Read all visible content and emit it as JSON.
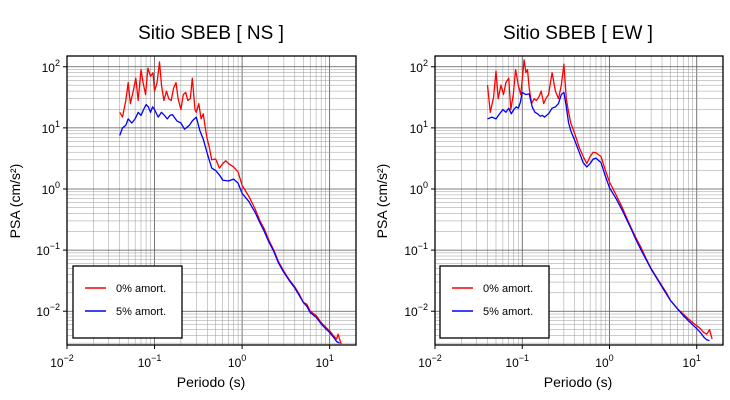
{
  "chart_data": [
    {
      "type": "line",
      "title": "Sitio SBEB [ NS ]",
      "xlabel": "Periodo (s)",
      "ylabel": "PSA (cm/s²)",
      "xscale": "log",
      "yscale": "log",
      "xlim": [
        0.01,
        20
      ],
      "ylim": [
        0.0028,
        150
      ],
      "grid": true,
      "legend": "bottom-left",
      "x_ticks": [
        {
          "v": 0.01,
          "base": "10",
          "exp": "−2"
        },
        {
          "v": 0.1,
          "base": "10",
          "exp": "−1"
        },
        {
          "v": 1,
          "base": "10",
          "exp": "0"
        },
        {
          "v": 10,
          "base": "10",
          "exp": "1"
        }
      ],
      "y_ticks": [
        {
          "v": 0.01,
          "base": "10",
          "exp": "−2"
        },
        {
          "v": 0.1,
          "base": "10",
          "exp": "−1"
        },
        {
          "v": 1,
          "base": "10",
          "exp": "0"
        },
        {
          "v": 10,
          "base": "10",
          "exp": "1"
        },
        {
          "v": 100,
          "base": "10",
          "exp": "2"
        }
      ],
      "series": [
        {
          "name": "0% amort.",
          "color": "#ff0000",
          "points": [
            [
              0.04,
              18
            ],
            [
              0.043,
              15
            ],
            [
              0.047,
              28
            ],
            [
              0.05,
              55
            ],
            [
              0.053,
              25
            ],
            [
              0.057,
              40
            ],
            [
              0.061,
              65
            ],
            [
              0.065,
              28
            ],
            [
              0.07,
              90
            ],
            [
              0.074,
              55
            ],
            [
              0.079,
              35
            ],
            [
              0.084,
              95
            ],
            [
              0.09,
              70
            ],
            [
              0.096,
              80
            ],
            [
              0.1,
              40
            ],
            [
              0.107,
              55
            ],
            [
              0.114,
              120
            ],
            [
              0.12,
              50
            ],
            [
              0.128,
              28
            ],
            [
              0.137,
              40
            ],
            [
              0.145,
              30
            ],
            [
              0.155,
              28
            ],
            [
              0.165,
              45
            ],
            [
              0.176,
              55
            ],
            [
              0.186,
              30
            ],
            [
              0.2,
              20
            ],
            [
              0.213,
              35
            ],
            [
              0.227,
              38
            ],
            [
              0.24,
              28
            ],
            [
              0.256,
              30
            ],
            [
              0.27,
              65
            ],
            [
              0.29,
              20
            ],
            [
              0.3,
              18
            ],
            [
              0.32,
              25
            ],
            [
              0.34,
              14
            ],
            [
              0.36,
              17
            ],
            [
              0.38,
              10
            ],
            [
              0.4,
              6.5
            ],
            [
              0.42,
              5
            ],
            [
              0.45,
              3
            ],
            [
              0.5,
              3.1
            ],
            [
              0.55,
              2.2
            ],
            [
              0.6,
              2.6
            ],
            [
              0.65,
              2.9
            ],
            [
              0.7,
              2.6
            ],
            [
              0.8,
              2.3
            ],
            [
              0.9,
              1.9
            ],
            [
              1.0,
              1.15
            ],
            [
              1.2,
              0.75
            ],
            [
              1.4,
              0.48
            ],
            [
              1.6,
              0.3
            ],
            [
              1.8,
              0.22
            ],
            [
              2.0,
              0.15
            ],
            [
              2.3,
              0.1
            ],
            [
              2.6,
              0.065
            ],
            [
              3.0,
              0.045
            ],
            [
              3.5,
              0.032
            ],
            [
              4.0,
              0.025
            ],
            [
              4.5,
              0.019
            ],
            [
              5.0,
              0.014
            ],
            [
              5.5,
              0.013
            ],
            [
              6.0,
              0.01
            ],
            [
              7.0,
              0.0085
            ],
            [
              8.0,
              0.0065
            ],
            [
              9.0,
              0.0055
            ],
            [
              10.0,
              0.0048
            ],
            [
              11.0,
              0.004
            ],
            [
              12.0,
              0.0035
            ],
            [
              12.5,
              0.0042
            ],
            [
              13.5,
              0.0029
            ]
          ]
        },
        {
          "name": "5% amort.",
          "color": "#0000ff",
          "points": [
            [
              0.04,
              7.5
            ],
            [
              0.043,
              10
            ],
            [
              0.047,
              11
            ],
            [
              0.05,
              14
            ],
            [
              0.055,
              12
            ],
            [
              0.06,
              14
            ],
            [
              0.065,
              18
            ],
            [
              0.07,
              16
            ],
            [
              0.075,
              20
            ],
            [
              0.08,
              24
            ],
            [
              0.085,
              22
            ],
            [
              0.09,
              18
            ],
            [
              0.095,
              22
            ],
            [
              0.1,
              20
            ],
            [
              0.11,
              15
            ],
            [
              0.12,
              18
            ],
            [
              0.13,
              16
            ],
            [
              0.14,
              14
            ],
            [
              0.15,
              16
            ],
            [
              0.16,
              16.5
            ],
            [
              0.18,
              13
            ],
            [
              0.2,
              12
            ],
            [
              0.22,
              9.5
            ],
            [
              0.25,
              11
            ],
            [
              0.27,
              13
            ],
            [
              0.3,
              15
            ],
            [
              0.33,
              9
            ],
            [
              0.36,
              6.5
            ],
            [
              0.4,
              3.8
            ],
            [
              0.45,
              2.2
            ],
            [
              0.5,
              2.0
            ],
            [
              0.55,
              1.7
            ],
            [
              0.6,
              1.4
            ],
            [
              0.7,
              1.35
            ],
            [
              0.8,
              1.45
            ],
            [
              0.9,
              1.25
            ],
            [
              1.0,
              0.85
            ],
            [
              1.2,
              0.62
            ],
            [
              1.4,
              0.42
            ],
            [
              1.6,
              0.28
            ],
            [
              1.8,
              0.2
            ],
            [
              2.0,
              0.14
            ],
            [
              2.3,
              0.095
            ],
            [
              2.6,
              0.062
            ],
            [
              3.0,
              0.043
            ],
            [
              3.5,
              0.031
            ],
            [
              4.0,
              0.024
            ],
            [
              4.5,
              0.018
            ],
            [
              5.0,
              0.014
            ],
            [
              5.5,
              0.012
            ],
            [
              6.0,
              0.0095
            ],
            [
              7.0,
              0.008
            ],
            [
              8.0,
              0.0062
            ],
            [
              9.0,
              0.0052
            ],
            [
              10.0,
              0.0045
            ],
            [
              11.0,
              0.0038
            ],
            [
              12.0,
              0.0032
            ],
            [
              13.0,
              0.003
            ]
          ]
        }
      ]
    },
    {
      "type": "line",
      "title": "Sitio SBEB [ EW ]",
      "xlabel": "Periodo (s)",
      "ylabel": "PSA (cm/s²)",
      "xscale": "log",
      "yscale": "log",
      "xlim": [
        0.01,
        20
      ],
      "ylim": [
        0.0028,
        150
      ],
      "grid": true,
      "legend": "bottom-left",
      "x_ticks": [
        {
          "v": 0.01,
          "base": "10",
          "exp": "−2"
        },
        {
          "v": 0.1,
          "base": "10",
          "exp": "−1"
        },
        {
          "v": 1,
          "base": "10",
          "exp": "0"
        },
        {
          "v": 10,
          "base": "10",
          "exp": "1"
        }
      ],
      "y_ticks": [
        {
          "v": 0.01,
          "base": "10",
          "exp": "−2"
        },
        {
          "v": 0.1,
          "base": "10",
          "exp": "−1"
        },
        {
          "v": 1,
          "base": "10",
          "exp": "0"
        },
        {
          "v": 10,
          "base": "10",
          "exp": "1"
        },
        {
          "v": 100,
          "base": "10",
          "exp": "2"
        }
      ],
      "series": [
        {
          "name": "0% amort.",
          "color": "#ff0000",
          "points": [
            [
              0.04,
              50
            ],
            [
              0.043,
              18
            ],
            [
              0.047,
              32
            ],
            [
              0.05,
              85
            ],
            [
              0.053,
              30
            ],
            [
              0.057,
              50
            ],
            [
              0.061,
              35
            ],
            [
              0.065,
              55
            ],
            [
              0.07,
              65
            ],
            [
              0.074,
              20
            ],
            [
              0.079,
              35
            ],
            [
              0.084,
              90
            ],
            [
              0.09,
              50
            ],
            [
              0.096,
              35
            ],
            [
              0.1,
              60
            ],
            [
              0.105,
              130
            ],
            [
              0.11,
              80
            ],
            [
              0.115,
              90
            ],
            [
              0.12,
              45
            ],
            [
              0.128,
              25
            ],
            [
              0.137,
              30
            ],
            [
              0.145,
              28
            ],
            [
              0.155,
              32
            ],
            [
              0.165,
              40
            ],
            [
              0.176,
              25
            ],
            [
              0.186,
              30
            ],
            [
              0.2,
              35
            ],
            [
              0.22,
              80
            ],
            [
              0.24,
              40
            ],
            [
              0.26,
              30
            ],
            [
              0.28,
              50
            ],
            [
              0.3,
              110
            ],
            [
              0.32,
              30
            ],
            [
              0.34,
              18
            ],
            [
              0.36,
              12
            ],
            [
              0.4,
              8
            ],
            [
              0.45,
              4.8
            ],
            [
              0.5,
              3.4
            ],
            [
              0.55,
              2.6
            ],
            [
              0.6,
              3.4
            ],
            [
              0.65,
              4
            ],
            [
              0.7,
              3.9
            ],
            [
              0.8,
              3.4
            ],
            [
              0.9,
              2
            ],
            [
              1.0,
              1.3
            ],
            [
              1.2,
              0.78
            ],
            [
              1.4,
              0.5
            ],
            [
              1.6,
              0.32
            ],
            [
              1.8,
              0.22
            ],
            [
              2.0,
              0.16
            ],
            [
              2.3,
              0.11
            ],
            [
              2.6,
              0.075
            ],
            [
              3.0,
              0.05
            ],
            [
              3.5,
              0.035
            ],
            [
              4.0,
              0.026
            ],
            [
              4.5,
              0.02
            ],
            [
              5.0,
              0.015
            ],
            [
              6.0,
              0.011
            ],
            [
              7.0,
              0.009
            ],
            [
              8.0,
              0.0075
            ],
            [
              9.0,
              0.0065
            ],
            [
              10.0,
              0.0058
            ],
            [
              11.0,
              0.0052
            ],
            [
              12.0,
              0.0045
            ],
            [
              13.0,
              0.0042
            ],
            [
              14.0,
              0.005
            ],
            [
              15.0,
              0.0035
            ]
          ]
        },
        {
          "name": "5% amort.",
          "color": "#0000ff",
          "points": [
            [
              0.04,
              14
            ],
            [
              0.045,
              15
            ],
            [
              0.05,
              14
            ],
            [
              0.055,
              17
            ],
            [
              0.06,
              20
            ],
            [
              0.065,
              18
            ],
            [
              0.07,
              21
            ],
            [
              0.075,
              17
            ],
            [
              0.08,
              20
            ],
            [
              0.085,
              22
            ],
            [
              0.09,
              21
            ],
            [
              0.095,
              26
            ],
            [
              0.1,
              38
            ],
            [
              0.11,
              35
            ],
            [
              0.12,
              36
            ],
            [
              0.13,
              22
            ],
            [
              0.14,
              18
            ],
            [
              0.15,
              17
            ],
            [
              0.16,
              15.5
            ],
            [
              0.17,
              16
            ],
            [
              0.18,
              15
            ],
            [
              0.2,
              17
            ],
            [
              0.22,
              21
            ],
            [
              0.24,
              22
            ],
            [
              0.26,
              25
            ],
            [
              0.28,
              35
            ],
            [
              0.3,
              38
            ],
            [
              0.32,
              22
            ],
            [
              0.34,
              12
            ],
            [
              0.36,
              9
            ],
            [
              0.4,
              6.2
            ],
            [
              0.45,
              4
            ],
            [
              0.5,
              2.7
            ],
            [
              0.55,
              2.3
            ],
            [
              0.6,
              2.6
            ],
            [
              0.65,
              3.1
            ],
            [
              0.7,
              3.2
            ],
            [
              0.8,
              2.7
            ],
            [
              0.9,
              1.6
            ],
            [
              1.0,
              1.05
            ],
            [
              1.2,
              0.68
            ],
            [
              1.4,
              0.45
            ],
            [
              1.6,
              0.3
            ],
            [
              1.8,
              0.21
            ],
            [
              2.0,
              0.15
            ],
            [
              2.3,
              0.1
            ],
            [
              2.6,
              0.072
            ],
            [
              3.0,
              0.049
            ],
            [
              3.5,
              0.034
            ],
            [
              4.0,
              0.025
            ],
            [
              4.5,
              0.019
            ],
            [
              5.0,
              0.015
            ],
            [
              6.0,
              0.011
            ],
            [
              7.0,
              0.0085
            ],
            [
              8.0,
              0.007
            ],
            [
              9.0,
              0.006
            ],
            [
              10.0,
              0.0052
            ],
            [
              11.0,
              0.0045
            ],
            [
              12.0,
              0.0038
            ],
            [
              13.0,
              0.0034
            ],
            [
              14.0,
              0.0033
            ]
          ]
        }
      ]
    }
  ]
}
